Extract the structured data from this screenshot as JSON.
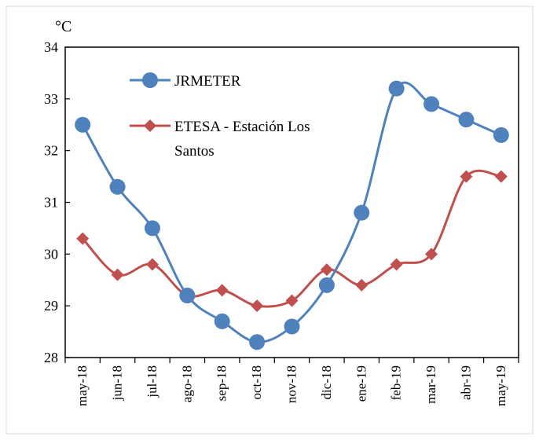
{
  "chart_data": {
    "type": "line",
    "unit_label": "°C",
    "categories": [
      "may-18",
      "jun-18",
      "jul-18",
      "ago-18",
      "sep-18",
      "oct-18",
      "nov-18",
      "dic-18",
      "ene-19",
      "feb-19",
      "mar-19",
      "abr-19",
      "may-19"
    ],
    "ylim": [
      28,
      34
    ],
    "yticks": [
      28,
      29,
      30,
      31,
      32,
      33,
      34
    ],
    "grid": false,
    "legend_position": "top-left",
    "series": [
      {
        "name": "JRMETER",
        "color": "#4F81BD",
        "marker": "circle",
        "values": [
          32.5,
          31.3,
          30.5,
          29.2,
          28.7,
          28.3,
          28.6,
          29.4,
          30.8,
          33.2,
          32.9,
          32.6,
          32.3
        ]
      },
      {
        "name": "ETESA - Estación Los Santos",
        "color": "#C0504D",
        "marker": "diamond",
        "values": [
          30.3,
          29.6,
          29.8,
          29.2,
          29.3,
          29.0,
          29.1,
          29.7,
          29.4,
          29.8,
          30.0,
          31.5,
          31.5
        ]
      }
    ]
  }
}
